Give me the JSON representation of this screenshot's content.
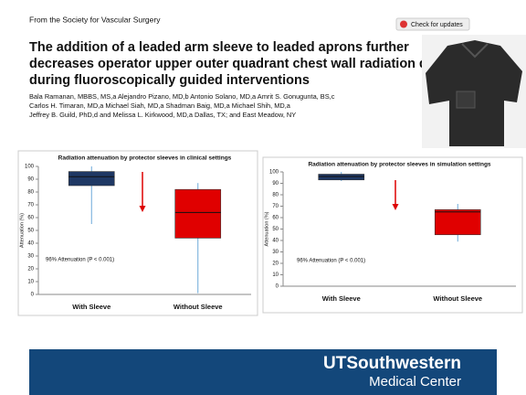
{
  "header": {
    "source": "From the Society for Vascular Surgery",
    "button": "Check for updates",
    "title_lines": [
      "The addition of a leaded arm sleeve to leaded aprons further",
      "decreases operator upper outer quadrant chest wall radiation dose",
      "during fluoroscopically guided interventions"
    ],
    "author_lines": [
      "Bala Ramanan, MBBS, MS,a Alejandro Pizano, MD,b Antonio Solano, MD,a Amrit S. Gonugunta, BS,c",
      "Carlos H. Timaran, MD,a Michael Siah, MD,a Shadman Baig, MD,a Michael Shih, MD,a",
      "Jeffrey B. Guild, PhD,d and Melissa L. Kirkwood, MD,a Dallas, TX; and East Meadow, NY"
    ]
  },
  "chart_data": [
    {
      "type": "box",
      "title": "Radiation attenuation by protector sleeves  in clinical settings",
      "y_label": "Attenuation (%)",
      "annotation": "96% Attenuation (P < 0.001)",
      "categories": [
        "With Sleeve",
        "Without Sleeve"
      ],
      "colors": [
        "#1f3864",
        "#e00000"
      ],
      "boxes": [
        {
          "min": 55,
          "q1": 85,
          "median": 92,
          "q3": 96,
          "max": 100
        },
        {
          "min": 1,
          "q1": 44,
          "median": 64,
          "q3": 82,
          "max": 87
        }
      ],
      "ylim": [
        0,
        100
      ],
      "yticks": [
        0,
        10,
        20,
        30,
        40,
        50,
        60,
        70,
        80,
        90,
        100
      ]
    },
    {
      "type": "box",
      "title": "Radiation attenuation by protector sleeves  in simulation settings",
      "y_label": "Attenuation (%)",
      "annotation": "96% Attenuation (P < 0.001)",
      "categories": [
        "With Sleeve",
        "Without Sleeve"
      ],
      "colors": [
        "#1f3864",
        "#e00000"
      ],
      "boxes": [
        {
          "min": 92,
          "q1": 93,
          "median": 96,
          "q3": 98,
          "max": 100
        },
        {
          "min": 39,
          "q1": 45,
          "median": 65,
          "q3": 67,
          "max": 72
        }
      ],
      "ylim": [
        0,
        100
      ],
      "yticks": [
        0,
        10,
        20,
        30,
        40,
        50,
        60,
        70,
        80,
        90,
        100
      ]
    }
  ],
  "footer": {
    "name": "UTSouthwestern",
    "sub": "Medical Center"
  }
}
